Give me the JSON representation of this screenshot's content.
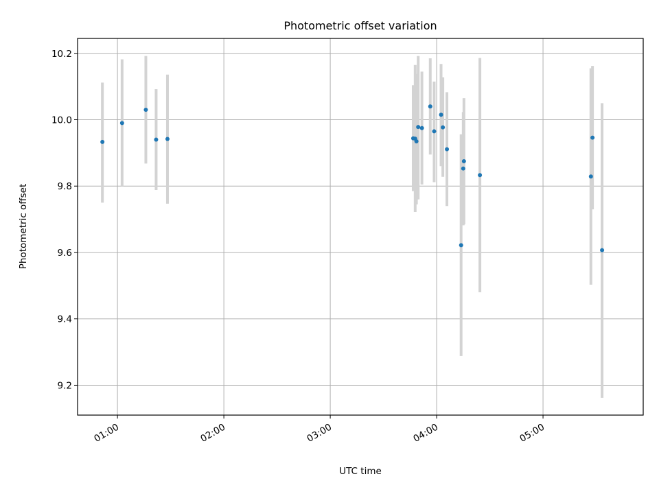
{
  "chart_data": {
    "type": "scatter",
    "title": "Photometric offset variation",
    "xlabel": "UTC time",
    "ylabel": "Photometric offset",
    "x_ticks": [
      "01:00",
      "02:00",
      "03:00",
      "04:00",
      "05:00"
    ],
    "x_tick_values": [
      60,
      120,
      180,
      240,
      300
    ],
    "y_ticks": [
      "9.2",
      "9.4",
      "9.6",
      "9.8",
      "10.0",
      "10.2"
    ],
    "y_tick_values": [
      9.2,
      9.4,
      9.6,
      9.8,
      10.0,
      10.2
    ],
    "xlim_minutes": [
      37.5,
      356.5
    ],
    "ylim": [
      9.11,
      10.245
    ],
    "grid": true,
    "colors": {
      "points": "#1f77b4",
      "error_bars": "#d3d3d3",
      "grid": "#b0b0b0",
      "axes": "#000000"
    },
    "points": [
      {
        "x": 51.5,
        "y": 9.933,
        "ylow": 9.75,
        "yhigh": 10.112
      },
      {
        "x": 62.6,
        "y": 9.99,
        "ylow": 9.8,
        "yhigh": 10.182
      },
      {
        "x": 76.0,
        "y": 10.03,
        "ylow": 9.868,
        "yhigh": 10.192
      },
      {
        "x": 81.8,
        "y": 9.94,
        "ylow": 9.788,
        "yhigh": 10.092
      },
      {
        "x": 88.2,
        "y": 9.942,
        "ylow": 9.747,
        "yhigh": 10.136
      },
      {
        "x": 226.8,
        "y": 9.944,
        "ylow": 9.785,
        "yhigh": 10.104
      },
      {
        "x": 227.9,
        "y": 9.943,
        "ylow": 9.722,
        "yhigh": 10.165
      },
      {
        "x": 228.6,
        "y": 9.935,
        "ylow": 9.745,
        "yhigh": 10.138
      },
      {
        "x": 229.6,
        "y": 9.978,
        "ylow": 9.76,
        "yhigh": 10.192
      },
      {
        "x": 231.7,
        "y": 9.975,
        "ylow": 9.805,
        "yhigh": 10.145
      },
      {
        "x": 236.4,
        "y": 10.04,
        "ylow": 9.895,
        "yhigh": 10.185
      },
      {
        "x": 238.6,
        "y": 9.965,
        "ylow": 9.812,
        "yhigh": 10.115
      },
      {
        "x": 242.5,
        "y": 10.015,
        "ylow": 9.86,
        "yhigh": 10.168
      },
      {
        "x": 243.5,
        "y": 9.977,
        "ylow": 9.828,
        "yhigh": 10.128
      },
      {
        "x": 245.8,
        "y": 9.911,
        "ylow": 9.74,
        "yhigh": 10.083
      },
      {
        "x": 253.8,
        "y": 9.622,
        "ylow": 9.288,
        "yhigh": 9.956
      },
      {
        "x": 255.0,
        "y": 9.853,
        "ylow": 9.682,
        "yhigh": 10.023
      },
      {
        "x": 255.4,
        "y": 9.875,
        "ylow": 9.685,
        "yhigh": 10.065
      },
      {
        "x": 264.4,
        "y": 9.833,
        "ylow": 9.48,
        "yhigh": 10.186
      },
      {
        "x": 327.0,
        "y": 9.829,
        "ylow": 9.503,
        "yhigh": 10.155
      },
      {
        "x": 327.9,
        "y": 9.946,
        "ylow": 9.73,
        "yhigh": 10.162
      },
      {
        "x": 333.3,
        "y": 9.607,
        "ylow": 9.162,
        "yhigh": 10.05
      }
    ]
  }
}
